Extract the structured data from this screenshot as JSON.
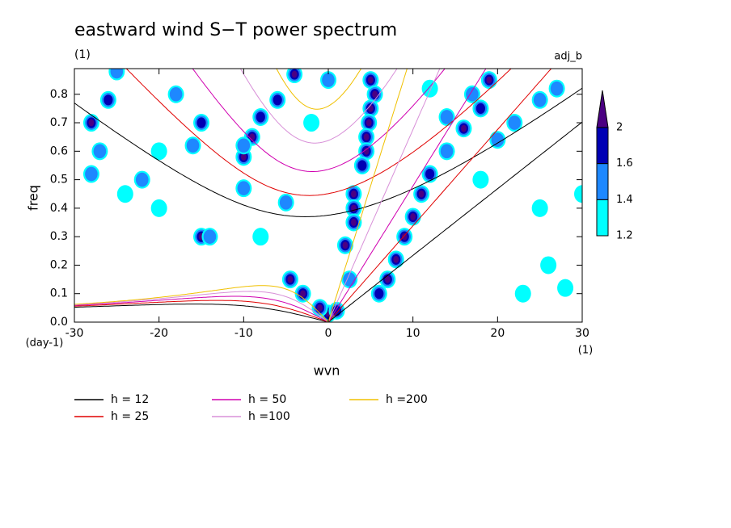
{
  "chart_data": {
    "type": "spectrum",
    "title": "eastward wind S−T power spectrum",
    "subtitle": "(1)",
    "corner_label": "adj_b",
    "xlabel": "wvn",
    "ylabel": "freq",
    "x_unit": "(1)",
    "y_unit": "(day-1)",
    "xlim": [
      -30,
      30
    ],
    "ylim": [
      0,
      0.89
    ],
    "xticks": [
      -30,
      -20,
      -10,
      0,
      10,
      20,
      30
    ],
    "yticks": [
      {
        "value": 0,
        "label": "0.0"
      },
      0.1,
      0.2,
      0.3,
      0.4,
      0.5,
      0.6,
      0.7,
      0.8
    ],
    "series": [
      {
        "name": "h = 12",
        "h": 12,
        "color": "#000000"
      },
      {
        "name": "h = 25",
        "h": 25,
        "color": "#e00000"
      },
      {
        "name": "h = 50",
        "h": 50,
        "color": "#d000b0"
      },
      {
        "name": "h =100",
        "h": 100,
        "color": "#d890d8"
      },
      {
        "name": "h =200",
        "h": 200,
        "color": "#f0c000"
      }
    ],
    "levels": [
      1.2,
      1.4,
      1.6,
      2
    ],
    "level_colors": [
      "#00ffff",
      "#1e88ff",
      "#0000b4",
      "#4b0082"
    ],
    "blobs": [
      [
        5,
        0.85,
        2
      ],
      [
        5.5,
        0.8,
        2
      ],
      [
        5,
        0.75,
        2
      ],
      [
        4.8,
        0.7,
        2
      ],
      [
        4.5,
        0.65,
        2
      ],
      [
        4.5,
        0.6,
        2
      ],
      [
        4,
        0.55,
        1.6
      ],
      [
        3,
        0.45,
        2
      ],
      [
        3,
        0.4,
        2
      ],
      [
        3,
        0.35,
        2
      ],
      [
        2,
        0.27,
        2
      ],
      [
        2.5,
        0.15,
        1.4
      ],
      [
        0,
        0.03,
        2
      ],
      [
        -1,
        0.05,
        2
      ],
      [
        -3,
        0.1,
        2
      ],
      [
        -4.5,
        0.15,
        2
      ],
      [
        1,
        0.04,
        1.6
      ],
      [
        6,
        0.1,
        1.6
      ],
      [
        7,
        0.15,
        2
      ],
      [
        8,
        0.22,
        2
      ],
      [
        9,
        0.3,
        2
      ],
      [
        10,
        0.37,
        2
      ],
      [
        11,
        0.45,
        2
      ],
      [
        12,
        0.52,
        1.6
      ],
      [
        14,
        0.6,
        1.4
      ],
      [
        16,
        0.68,
        2
      ],
      [
        18,
        0.75,
        1.6
      ],
      [
        19,
        0.85,
        2
      ],
      [
        -4,
        0.87,
        2
      ],
      [
        -6,
        0.78,
        1.6
      ],
      [
        -8,
        0.72,
        1.6
      ],
      [
        -9,
        0.65,
        2
      ],
      [
        -10,
        0.58,
        2
      ],
      [
        -15,
        0.7,
        1.6
      ],
      [
        -16,
        0.62,
        1.4
      ],
      [
        -25,
        0.88,
        1.4
      ],
      [
        -28,
        0.7,
        2
      ],
      [
        -27,
        0.6,
        1.4
      ],
      [
        -22,
        0.5,
        1.4
      ],
      [
        -28,
        0.52,
        1.4
      ],
      [
        -20,
        0.6,
        1.2
      ],
      [
        -15,
        0.3,
        2
      ],
      [
        -14,
        0.3,
        1.4
      ],
      [
        -18,
        0.8,
        1.4
      ],
      [
        -26,
        0.78,
        1.6
      ],
      [
        -5,
        0.42,
        1.4
      ],
      [
        -10,
        0.47,
        1.4
      ],
      [
        -20,
        0.4,
        1.2
      ],
      [
        -8,
        0.3,
        1.2
      ],
      [
        -24,
        0.45,
        1.2
      ],
      [
        27,
        0.82,
        1.4
      ],
      [
        25,
        0.78,
        1.4
      ],
      [
        22,
        0.7,
        1.4
      ],
      [
        20,
        0.64,
        1.4
      ],
      [
        17,
        0.8,
        1.4
      ],
      [
        14,
        0.72,
        1.4
      ],
      [
        18,
        0.5,
        1.2
      ],
      [
        25,
        0.4,
        1.2
      ],
      [
        23,
        0.1,
        1.2
      ],
      [
        26,
        0.2,
        1.2
      ],
      [
        28,
        0.12,
        1.2
      ],
      [
        -10,
        0.62,
        1.4
      ],
      [
        0,
        0.85,
        1.4
      ],
      [
        -2,
        0.7,
        1.2
      ],
      [
        12,
        0.82,
        1.2
      ],
      [
        30,
        0.45,
        1.2
      ]
    ]
  }
}
